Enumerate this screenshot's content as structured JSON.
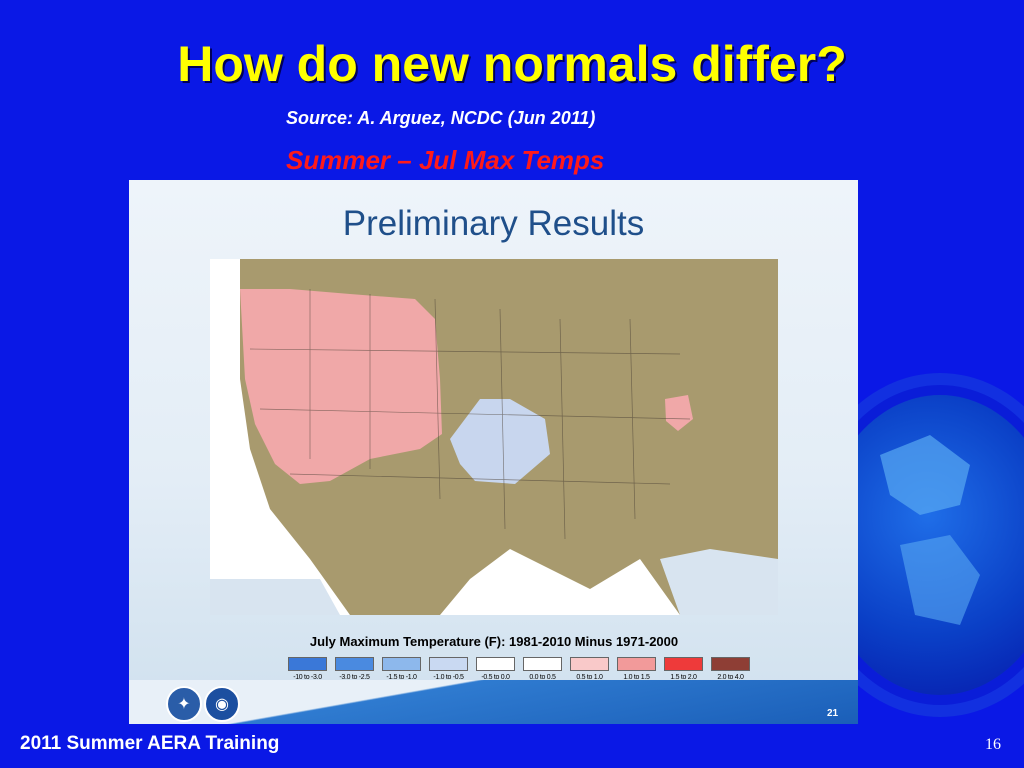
{
  "slide": {
    "title": "How do new normals differ?",
    "source": "Source:  A. Arguez, NCDC (Jun 2011)",
    "season": "Summer – Jul Max Temps",
    "footer_left": "2011 Summer AERA Training",
    "page_number": "16"
  },
  "panel": {
    "title": "Preliminary Results",
    "legend_title": "July Maximum Temperature (F): 1981-2010 Minus 1971-2000",
    "legend": [
      {
        "label": "-10 to -3.0",
        "color": "#3a78d8"
      },
      {
        "label": "-3.0 to -2.5",
        "color": "#4a8ae0"
      },
      {
        "label": "-1.5 to -1.0",
        "color": "#8db8ec"
      },
      {
        "label": "-1.0 to -0.5",
        "color": "#c9d9f2"
      },
      {
        "label": "-0.5 to 0.0",
        "color": "#ffffff"
      },
      {
        "label": "0.0 to 0.5",
        "color": "#ffffff"
      },
      {
        "label": "0.5 to 1.0",
        "color": "#f9c9c9"
      },
      {
        "label": "1.0 to 1.5",
        "color": "#f29a9a"
      },
      {
        "label": "1.5 to 2.0",
        "color": "#ee3a3a"
      },
      {
        "label": "2.0 to 4.0",
        "color": "#8e3e35"
      }
    ],
    "slide_number": "21"
  },
  "colors": {
    "background": "#0a18e6",
    "title": "#ffff00",
    "season": "#ff1a1a",
    "map_land": "#a89a6e",
    "warm_region": "#f0a8a8",
    "cool_region": "#c8d6ee"
  }
}
